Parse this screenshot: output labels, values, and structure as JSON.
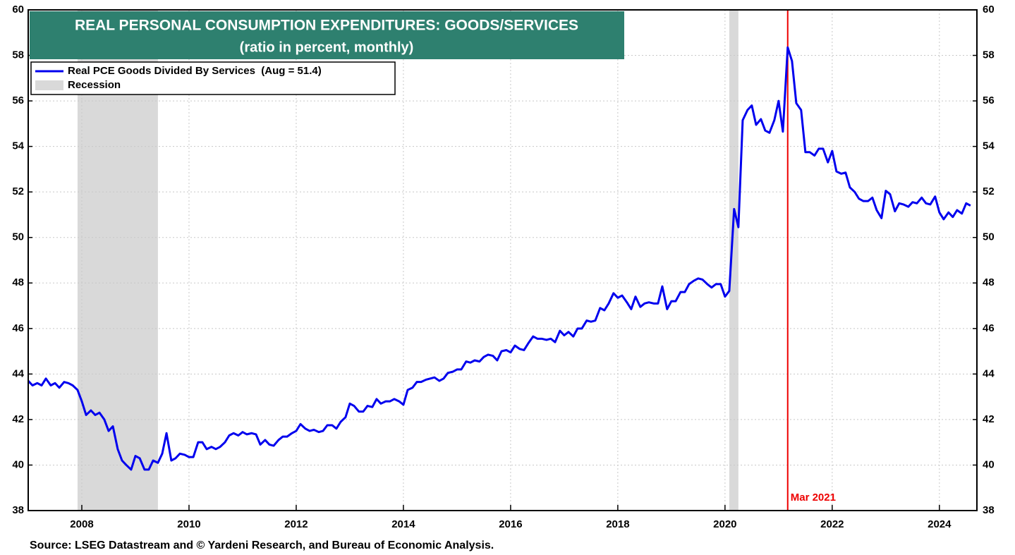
{
  "chart_data": {
    "type": "line",
    "title": "REAL PERSONAL CONSUMPTION EXPENDITURES: GOODS/SERVICES",
    "subtitle": "(ratio in percent, monthly)",
    "source": "Source: LSEG Datastream and © Yardeni Research, and Bureau of Economic Analysis.",
    "x": [
      2007.0,
      2007.08,
      2007.17,
      2007.25,
      2007.33,
      2007.42,
      2007.5,
      2007.58,
      2007.67,
      2007.75,
      2007.83,
      2007.92,
      2008.0,
      2008.08,
      2008.17,
      2008.25,
      2008.33,
      2008.42,
      2008.5,
      2008.58,
      2008.67,
      2008.75,
      2008.83,
      2008.92,
      2009.0,
      2009.08,
      2009.17,
      2009.25,
      2009.33,
      2009.42,
      2009.5,
      2009.58,
      2009.67,
      2009.75,
      2009.83,
      2009.92,
      2010.0,
      2010.08,
      2010.17,
      2010.25,
      2010.33,
      2010.42,
      2010.5,
      2010.58,
      2010.67,
      2010.75,
      2010.83,
      2010.92,
      2011.0,
      2011.08,
      2011.17,
      2011.25,
      2011.33,
      2011.42,
      2011.5,
      2011.58,
      2011.67,
      2011.75,
      2011.83,
      2011.92,
      2012.0,
      2012.08,
      2012.17,
      2012.25,
      2012.33,
      2012.42,
      2012.5,
      2012.58,
      2012.67,
      2012.75,
      2012.83,
      2012.92,
      2013.0,
      2013.08,
      2013.17,
      2013.25,
      2013.33,
      2013.42,
      2013.5,
      2013.58,
      2013.67,
      2013.75,
      2013.83,
      2013.92,
      2014.0,
      2014.08,
      2014.17,
      2014.25,
      2014.33,
      2014.42,
      2014.5,
      2014.58,
      2014.67,
      2014.75,
      2014.83,
      2014.92,
      2015.0,
      2015.08,
      2015.17,
      2015.25,
      2015.33,
      2015.42,
      2015.5,
      2015.58,
      2015.67,
      2015.75,
      2015.83,
      2015.92,
      2016.0,
      2016.08,
      2016.17,
      2016.25,
      2016.33,
      2016.42,
      2016.5,
      2016.58,
      2016.67,
      2016.75,
      2016.83,
      2016.92,
      2017.0,
      2017.08,
      2017.17,
      2017.25,
      2017.33,
      2017.42,
      2017.5,
      2017.58,
      2017.67,
      2017.75,
      2017.83,
      2017.92,
      2018.0,
      2018.08,
      2018.17,
      2018.25,
      2018.33,
      2018.42,
      2018.5,
      2018.58,
      2018.67,
      2018.75,
      2018.83,
      2018.92,
      2019.0,
      2019.08,
      2019.17,
      2019.25,
      2019.33,
      2019.42,
      2019.5,
      2019.58,
      2019.67,
      2019.75,
      2019.83,
      2019.92,
      2020.0,
      2020.08,
      2020.17,
      2020.25,
      2020.33,
      2020.42,
      2020.5,
      2020.58,
      2020.67,
      2020.75,
      2020.83,
      2020.92,
      2021.0,
      2021.08,
      2021.17,
      2021.25,
      2021.33,
      2021.42,
      2021.5,
      2021.58,
      2021.67,
      2021.75,
      2021.83,
      2021.92,
      2022.0,
      2022.08,
      2022.17,
      2022.25,
      2022.33,
      2022.42,
      2022.5,
      2022.58,
      2022.67,
      2022.75,
      2022.83,
      2022.92,
      2023.0,
      2023.08,
      2023.17,
      2023.25,
      2023.33,
      2023.42,
      2023.5,
      2023.58,
      2023.67,
      2023.75,
      2023.83,
      2023.92,
      2024.0,
      2024.08,
      2024.17,
      2024.25,
      2024.33,
      2024.42,
      2024.5,
      2024.58
    ],
    "series": [
      {
        "name": "Real PCE Goods Divided By Services  (Aug = 51.4)",
        "color": "#0000ee",
        "values": [
          43.7,
          43.5,
          43.6,
          43.5,
          43.8,
          43.5,
          43.6,
          43.4,
          43.65,
          43.6,
          43.5,
          43.3,
          42.8,
          42.2,
          42.4,
          42.2,
          42.3,
          42.0,
          41.5,
          41.7,
          40.7,
          40.2,
          40.0,
          39.8,
          40.4,
          40.3,
          39.8,
          39.8,
          40.2,
          40.1,
          40.5,
          41.4,
          40.2,
          40.3,
          40.5,
          40.45,
          40.35,
          40.35,
          41.0,
          41.0,
          40.7,
          40.8,
          40.7,
          40.8,
          41.0,
          41.3,
          41.4,
          41.3,
          41.45,
          41.35,
          41.4,
          41.35,
          40.9,
          41.1,
          40.9,
          40.85,
          41.1,
          41.25,
          41.25,
          41.4,
          41.5,
          41.8,
          41.6,
          41.5,
          41.55,
          41.45,
          41.5,
          41.75,
          41.75,
          41.6,
          41.9,
          42.1,
          42.7,
          42.6,
          42.35,
          42.35,
          42.6,
          42.55,
          42.9,
          42.7,
          42.8,
          42.8,
          42.9,
          42.8,
          42.65,
          43.3,
          43.4,
          43.65,
          43.65,
          43.75,
          43.8,
          43.85,
          43.7,
          43.8,
          44.05,
          44.1,
          44.2,
          44.2,
          44.55,
          44.5,
          44.6,
          44.55,
          44.75,
          44.85,
          44.8,
          44.6,
          45.0,
          45.05,
          44.95,
          45.25,
          45.1,
          45.05,
          45.35,
          45.65,
          45.55,
          45.55,
          45.5,
          45.55,
          45.4,
          45.9,
          45.7,
          45.85,
          45.65,
          46.0,
          46.0,
          46.35,
          46.3,
          46.35,
          46.9,
          46.8,
          47.1,
          47.55,
          47.35,
          47.45,
          47.15,
          46.85,
          47.4,
          46.95,
          47.1,
          47.15,
          47.1,
          47.1,
          47.85,
          46.85,
          47.2,
          47.2,
          47.6,
          47.6,
          47.95,
          48.1,
          48.2,
          48.15,
          47.95,
          47.8,
          47.95,
          47.95,
          47.4,
          47.65,
          51.25,
          50.45,
          55.15,
          55.6,
          55.8,
          54.95,
          55.2,
          54.7,
          54.6,
          55.15,
          56.0,
          54.65,
          58.35,
          57.75,
          55.9,
          55.6,
          53.75,
          53.75,
          53.6,
          53.9,
          53.9,
          53.3,
          53.8,
          52.9,
          52.8,
          52.85,
          52.2,
          52.0,
          51.7,
          51.6,
          51.6,
          51.75,
          51.2,
          50.85,
          52.05,
          51.9,
          51.15,
          51.5,
          51.45,
          51.35,
          51.55,
          51.5,
          51.75,
          51.5,
          51.45,
          51.8,
          51.1,
          50.8,
          51.1,
          50.9,
          51.2,
          51.05,
          51.5,
          51.4
        ]
      }
    ],
    "recession": {
      "name": "Recession",
      "color": "#d9d9d9",
      "periods": [
        [
          2007.92,
          2009.42
        ],
        [
          2020.08,
          2020.25
        ]
      ]
    },
    "annotation": {
      "text": "Mar 2021",
      "x": 2021.17,
      "color": "#ee0000"
    },
    "xlim": [
      2007,
      2024.7
    ],
    "xticks": [
      2008,
      2010,
      2012,
      2014,
      2016,
      2018,
      2020,
      2022,
      2024
    ],
    "ylim": [
      38,
      60
    ],
    "yticks": [
      38,
      40,
      42,
      44,
      46,
      48,
      50,
      52,
      54,
      56,
      58,
      60
    ],
    "y2lim": [
      38,
      60
    ],
    "y2ticks": [
      38,
      40,
      42,
      44,
      46,
      48,
      50,
      52,
      54,
      56,
      58,
      60
    ],
    "grid": true
  }
}
